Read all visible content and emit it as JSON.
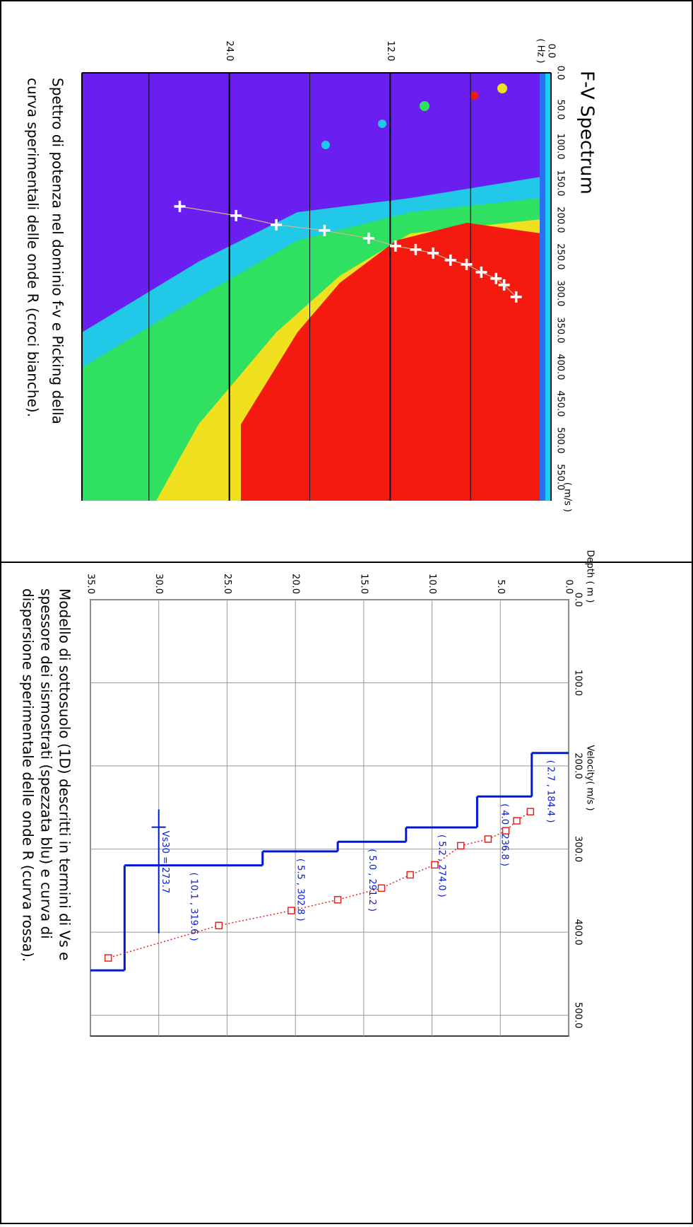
{
  "chart_data": [
    {
      "type": "scatter",
      "title": "F-V Spectrum",
      "x_label": "( m/s )",
      "y_label": "( Hz )",
      "caption": [
        "Spettro di potenza nel dominio f-v e Picking della",
        "curva sperimentali delle onde R (croci bianche)."
      ],
      "xlim": [
        0,
        582
      ],
      "ylim": [
        0,
        35
      ],
      "xticks": [
        {
          "value": 0,
          "label": "0.0"
        },
        {
          "value": 50,
          "label": "50.0"
        },
        {
          "value": 100,
          "label": "100.0"
        },
        {
          "value": 150,
          "label": "150.0"
        },
        {
          "value": 200,
          "label": "200.0"
        },
        {
          "value": 250,
          "label": "250.0"
        },
        {
          "value": 300,
          "label": "300.0"
        },
        {
          "value": 350,
          "label": "350.0"
        },
        {
          "value": 400,
          "label": "400.0"
        },
        {
          "value": 450,
          "label": "450.0"
        },
        {
          "value": 500,
          "label": "500.0"
        },
        {
          "value": 550,
          "label": "550.0"
        }
      ],
      "yticks": [
        {
          "value": 0,
          "label": "0.0"
        },
        {
          "value": 12,
          "label": "12.0"
        },
        {
          "value": 24,
          "label": "24.0"
        }
      ],
      "minor_yticks": [
        6,
        18,
        30
      ],
      "color": "#ffffff",
      "x": [
        181.7,
        194.2,
        206.7,
        214.4,
        225.0,
        235.6,
        240.4,
        245.2,
        254.8,
        260.6,
        271.2,
        279.8,
        288.5,
        304.8
      ],
      "y": [
        27.7,
        23.5,
        20.5,
        16.9,
        13.6,
        11.6,
        10.1,
        8.8,
        7.5,
        6.3,
        5.2,
        4.1,
        3.5,
        2.6
      ]
    },
    {
      "type": "step",
      "x_label": "Velocity( m/s )",
      "y_label": "Depth ( m )",
      "caption": [
        "Modello di sottosuolo (1D) descritti in termini di Vs e",
        "spessore dei sismostrati (spezzata blu) e curva di",
        "dispersione sperimentale delle onde R (curva rossa)."
      ],
      "xlim": [
        0,
        525
      ],
      "ylim": [
        0,
        35
      ],
      "grid": true,
      "xticks": [
        {
          "value": 0,
          "label": "0.0"
        },
        {
          "value": 100,
          "label": "100.0"
        },
        {
          "value": 200,
          "label": "200.0"
        },
        {
          "value": 300,
          "label": "300.0"
        },
        {
          "value": 400,
          "label": "400.0"
        },
        {
          "value": 500,
          "label": "500.0"
        }
      ],
      "yticks": [
        {
          "value": 0,
          "label": "0.0"
        },
        {
          "value": 5,
          "label": "5.0"
        },
        {
          "value": 10,
          "label": "10.0"
        },
        {
          "value": 15,
          "label": "15.0"
        },
        {
          "value": 20,
          "label": "20.0"
        },
        {
          "value": 25,
          "label": "25.0"
        },
        {
          "value": 30,
          "label": "30.0"
        },
        {
          "value": 35,
          "label": "35.0"
        }
      ],
      "layers": {
        "color": "#0018d8",
        "thickness": [
          2.7,
          4.0,
          5.2,
          5.0,
          5.5,
          10.1
        ],
        "velocity": [
          184.4,
          236.8,
          274.0,
          291.2,
          302.8,
          319.6
        ],
        "value_labels": [
          "( 2.7 , 184.4 )",
          "( 4.0 , 236.8 )",
          "( 5.2 , 274.0 )",
          "( 5.0 , 291.2 )",
          "( 5.5 , 302.8 )",
          "( 10.1 , 319.6 )"
        ],
        "halfspace_velocity": 446
      },
      "vs30": {
        "value": 273.7,
        "label": "Vs30 = 273.7",
        "depth": 30
      },
      "dispersion": {
        "color": "#e8201c",
        "x": [
          255,
          266,
          278,
          288,
          296,
          319,
          331,
          347,
          361,
          374,
          392,
          431
        ],
        "y": [
          2.8,
          3.8,
          4.6,
          5.9,
          7.9,
          9.8,
          11.6,
          13.7,
          16.9,
          20.3,
          25.6,
          33.7
        ]
      }
    }
  ]
}
